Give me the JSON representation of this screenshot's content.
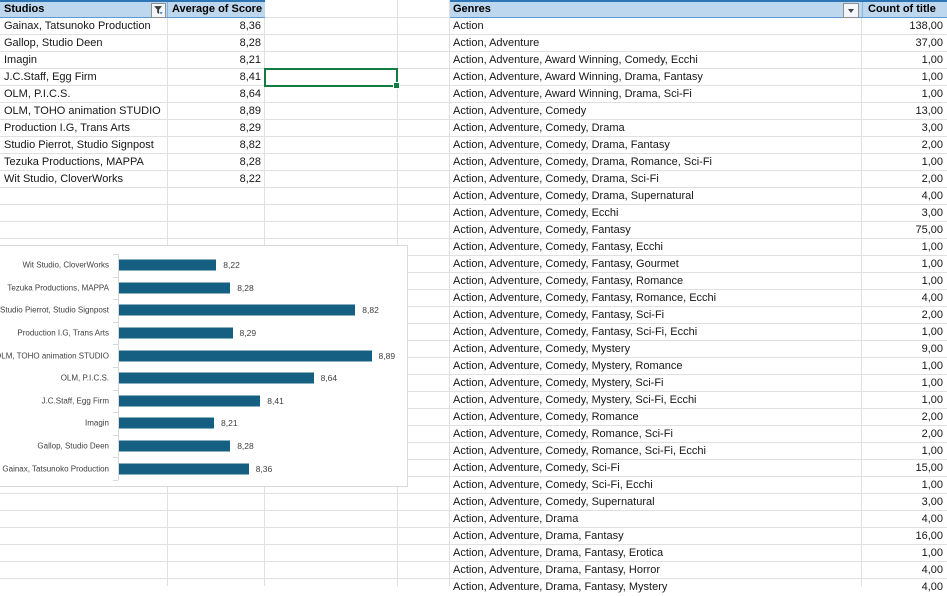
{
  "sheet": {
    "left_table": {
      "header": {
        "studios": "Studios",
        "score": "Average of Score"
      },
      "rows": [
        {
          "studio": "Gainax, Tatsunoko Production",
          "score": "8,36"
        },
        {
          "studio": "Gallop, Studio Deen",
          "score": "8,28"
        },
        {
          "studio": "Imagin",
          "score": "8,21"
        },
        {
          "studio": "J.C.Staff, Egg Firm",
          "score": "8,41"
        },
        {
          "studio": "OLM, P.I.C.S.",
          "score": "8,64"
        },
        {
          "studio": "OLM, TOHO animation STUDIO",
          "score": "8,89"
        },
        {
          "studio": "Production I.G, Trans Arts",
          "score": "8,29"
        },
        {
          "studio": "Studio Pierrot, Studio Signpost",
          "score": "8,82"
        },
        {
          "studio": "Tezuka Productions, MAPPA",
          "score": "8,28"
        },
        {
          "studio": "Wit Studio, CloverWorks",
          "score": "8,22"
        }
      ]
    },
    "right_table": {
      "header": {
        "genres": "Genres",
        "count": "Count of title"
      },
      "rows": [
        {
          "genre": "Action",
          "count": "138,00"
        },
        {
          "genre": "Action, Adventure",
          "count": "37,00"
        },
        {
          "genre": "Action, Adventure, Award Winning, Comedy, Ecchi",
          "count": "1,00"
        },
        {
          "genre": "Action, Adventure, Award Winning, Drama, Fantasy",
          "count": "1,00"
        },
        {
          "genre": "Action, Adventure, Award Winning, Drama, Sci-Fi",
          "count": "1,00"
        },
        {
          "genre": "Action, Adventure, Comedy",
          "count": "13,00"
        },
        {
          "genre": "Action, Adventure, Comedy, Drama",
          "count": "3,00"
        },
        {
          "genre": "Action, Adventure, Comedy, Drama, Fantasy",
          "count": "2,00"
        },
        {
          "genre": "Action, Adventure, Comedy, Drama, Romance, Sci-Fi",
          "count": "1,00"
        },
        {
          "genre": "Action, Adventure, Comedy, Drama, Sci-Fi",
          "count": "2,00"
        },
        {
          "genre": "Action, Adventure, Comedy, Drama, Supernatural",
          "count": "4,00"
        },
        {
          "genre": "Action, Adventure, Comedy, Ecchi",
          "count": "3,00"
        },
        {
          "genre": "Action, Adventure, Comedy, Fantasy",
          "count": "75,00"
        },
        {
          "genre": "Action, Adventure, Comedy, Fantasy, Ecchi",
          "count": "1,00"
        },
        {
          "genre": "Action, Adventure, Comedy, Fantasy, Gourmet",
          "count": "1,00"
        },
        {
          "genre": "Action, Adventure, Comedy, Fantasy, Romance",
          "count": "1,00"
        },
        {
          "genre": "Action, Adventure, Comedy, Fantasy, Romance, Ecchi",
          "count": "4,00"
        },
        {
          "genre": "Action, Adventure, Comedy, Fantasy, Sci-Fi",
          "count": "2,00"
        },
        {
          "genre": "Action, Adventure, Comedy, Fantasy, Sci-Fi, Ecchi",
          "count": "1,00"
        },
        {
          "genre": "Action, Adventure, Comedy, Mystery",
          "count": "9,00"
        },
        {
          "genre": "Action, Adventure, Comedy, Mystery, Romance",
          "count": "1,00"
        },
        {
          "genre": "Action, Adventure, Comedy, Mystery, Sci-Fi",
          "count": "1,00"
        },
        {
          "genre": "Action, Adventure, Comedy, Mystery, Sci-Fi, Ecchi",
          "count": "1,00"
        },
        {
          "genre": "Action, Adventure, Comedy, Romance",
          "count": "2,00"
        },
        {
          "genre": "Action, Adventure, Comedy, Romance, Sci-Fi",
          "count": "2,00"
        },
        {
          "genre": "Action, Adventure, Comedy, Romance, Sci-Fi, Ecchi",
          "count": "1,00"
        },
        {
          "genre": "Action, Adventure, Comedy, Sci-Fi",
          "count": "15,00"
        },
        {
          "genre": "Action, Adventure, Comedy, Sci-Fi, Ecchi",
          "count": "1,00"
        },
        {
          "genre": "Action, Adventure, Comedy, Supernatural",
          "count": "3,00"
        },
        {
          "genre": "Action, Adventure, Drama",
          "count": "4,00"
        },
        {
          "genre": "Action, Adventure, Drama, Fantasy",
          "count": "16,00"
        },
        {
          "genre": "Action, Adventure, Drama, Fantasy, Erotica",
          "count": "1,00"
        },
        {
          "genre": "Action, Adventure, Drama, Fantasy, Horror",
          "count": "4,00"
        },
        {
          "genre": "Action, Adventure, Drama, Fantasy, Mystery",
          "count": "4,00"
        }
      ]
    }
  },
  "chart_data": {
    "type": "bar",
    "orientation": "horizontal",
    "title": "",
    "xlabel": "",
    "ylabel": "",
    "xlim": [
      7.8,
      9.0
    ],
    "grid": false,
    "legend": false,
    "categories_top_to_bottom": [
      "Wit Studio, CloverWorks",
      "Tezuka Productions, MAPPA",
      "Studio Pierrot, Studio Signpost",
      "Production I.G, Trans Arts",
      "OLM, TOHO animation STUDIO",
      "OLM, P.I.C.S.",
      "J.C.Staff, Egg Firm",
      "Imagin",
      "Gallop, Studio Deen",
      "Gainax, Tatsunoko Production"
    ],
    "values": [
      8.22,
      8.28,
      8.82,
      8.29,
      8.89,
      8.64,
      8.41,
      8.21,
      8.28,
      8.36
    ],
    "value_labels": [
      "8,22",
      "8,28",
      "8,82",
      "8,29",
      "8,89",
      "8,64",
      "8,41",
      "8,21",
      "8,28",
      "8,36"
    ]
  },
  "icons": {
    "studios_filter": "funnel-icon",
    "genres_filter": "chevron-down-icon"
  },
  "colors": {
    "header_bg": "#BDD7EE",
    "header_border_top": "#2E75B6",
    "header_border_bottom": "#5B9BD5",
    "gridline": "#e0e0e0",
    "selection": "#107C41",
    "bar": "#156082",
    "chart_border": "#D9D9D9"
  }
}
